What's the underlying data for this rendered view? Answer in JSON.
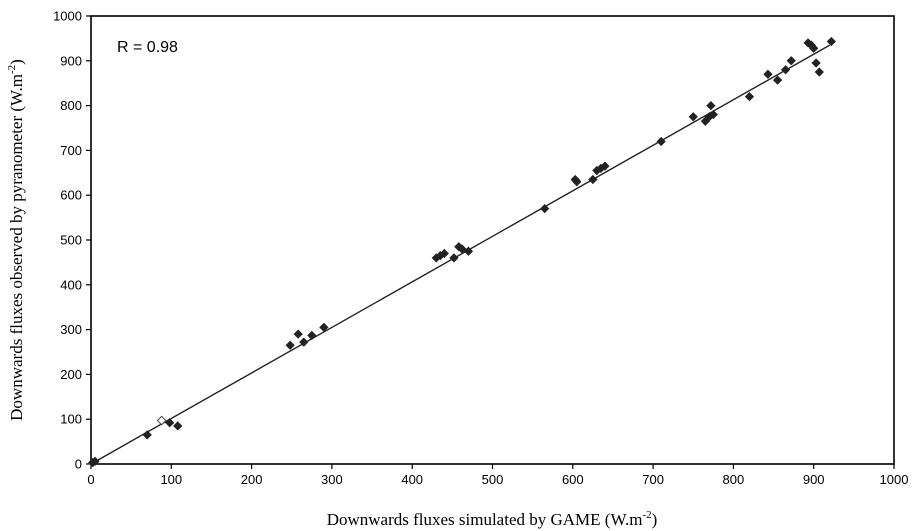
{
  "chart_data": {
    "type": "scatter",
    "xlabel": "Downwards fluxes simulated by GAME (W.m",
    "xlabel_sup": "-2",
    "xlabel_end": ")",
    "ylabel": "Downwards fluxes observed by pyranometer (W.m",
    "ylabel_sup": "-2",
    "ylabel_end": ")",
    "annotation": "R = 0.98",
    "xlim": [
      0,
      1000
    ],
    "ylim": [
      0,
      1000
    ],
    "x_ticks": [
      "0",
      "100",
      "200",
      "300",
      "400",
      "500",
      "600",
      "700",
      "800",
      "900",
      "1000"
    ],
    "y_ticks": [
      "0",
      "100",
      "200",
      "300",
      "400",
      "500",
      "600",
      "700",
      "800",
      "900",
      "1000"
    ],
    "grid": false,
    "regression_line": {
      "x": [
        0,
        920
      ],
      "y": [
        0,
        935
      ]
    },
    "series": [
      {
        "marker": "filled-diamond",
        "color": "#222222",
        "points": [
          [
            2,
            3
          ],
          [
            5,
            6
          ],
          [
            70,
            65
          ],
          [
            98,
            92
          ],
          [
            108,
            85
          ],
          [
            248,
            265
          ],
          [
            258,
            290
          ],
          [
            265,
            272
          ],
          [
            275,
            287
          ],
          [
            290,
            305
          ],
          [
            430,
            460
          ],
          [
            435,
            465
          ],
          [
            440,
            470
          ],
          [
            452,
            460
          ],
          [
            458,
            485
          ],
          [
            462,
            480
          ],
          [
            470,
            475
          ],
          [
            565,
            570
          ],
          [
            603,
            635
          ],
          [
            605,
            630
          ],
          [
            625,
            635
          ],
          [
            630,
            655
          ],
          [
            635,
            660
          ],
          [
            640,
            665
          ],
          [
            710,
            720
          ],
          [
            750,
            775
          ],
          [
            765,
            765
          ],
          [
            770,
            775
          ],
          [
            772,
            800
          ],
          [
            775,
            780
          ],
          [
            820,
            820
          ],
          [
            843,
            870
          ],
          [
            855,
            857
          ],
          [
            865,
            880
          ],
          [
            872,
            900
          ],
          [
            893,
            940
          ],
          [
            897,
            935
          ],
          [
            900,
            928
          ],
          [
            903,
            895
          ],
          [
            907,
            875
          ],
          [
            922,
            943
          ]
        ]
      },
      {
        "marker": "open-diamond",
        "color": "#444444",
        "points": [
          [
            88,
            97
          ]
        ]
      }
    ]
  }
}
